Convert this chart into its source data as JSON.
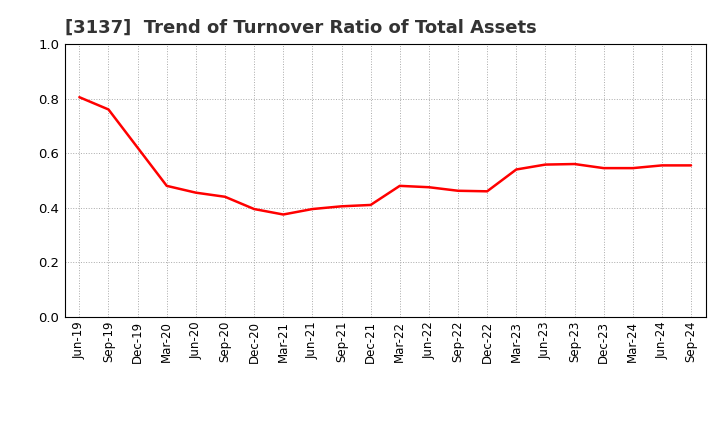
{
  "title": "[3137]  Trend of Turnover Ratio of Total Assets",
  "line_color": "#FF0000",
  "line_width": 1.8,
  "background_color": "#FFFFFF",
  "grid_color": "#AAAAAA",
  "ylim": [
    0.0,
    1.0
  ],
  "yticks": [
    0.0,
    0.2,
    0.4,
    0.6,
    0.8,
    1.0
  ],
  "labels": [
    "Jun-19",
    "Sep-19",
    "Dec-19",
    "Mar-20",
    "Jun-20",
    "Sep-20",
    "Dec-20",
    "Mar-21",
    "Jun-21",
    "Sep-21",
    "Dec-21",
    "Mar-22",
    "Jun-22",
    "Sep-22",
    "Dec-22",
    "Mar-23",
    "Jun-23",
    "Sep-23",
    "Dec-23",
    "Mar-24",
    "Jun-24",
    "Sep-24"
  ],
  "values": [
    0.805,
    0.76,
    0.62,
    0.48,
    0.455,
    0.44,
    0.395,
    0.375,
    0.395,
    0.405,
    0.41,
    0.48,
    0.475,
    0.462,
    0.46,
    0.54,
    0.558,
    0.56,
    0.545,
    0.545,
    0.555,
    0.555
  ],
  "title_fontsize": 13,
  "tick_fontsize": 8.5,
  "ytick_fontsize": 9.5,
  "title_color": "#333333",
  "fig_width": 7.2,
  "fig_height": 4.4,
  "dpi": 100
}
